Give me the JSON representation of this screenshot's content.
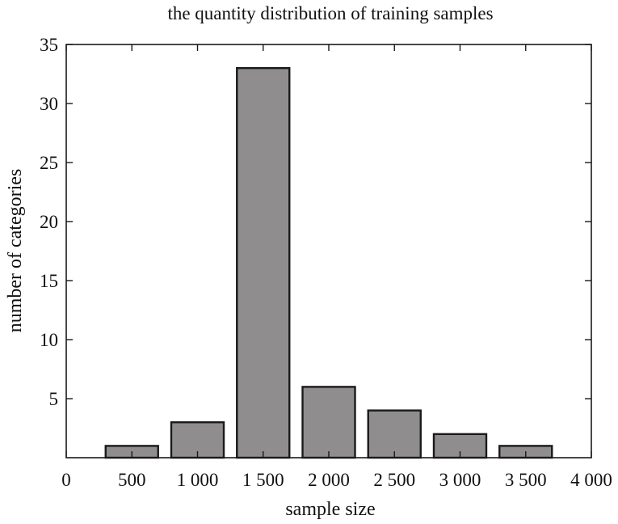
{
  "chart_data": {
    "type": "bar",
    "title": "the quantity distribution of training samples",
    "xlabel": "sample size",
    "ylabel": "number of categories",
    "x": [
      500,
      1000,
      1500,
      2000,
      2500,
      3000,
      3500
    ],
    "values": [
      1,
      3,
      33,
      6,
      4,
      2,
      1
    ],
    "bar_width": 400,
    "xlim": [
      0,
      4000
    ],
    "ylim": [
      0,
      35
    ],
    "xticks": [
      0,
      500,
      1000,
      1500,
      2000,
      2500,
      3000,
      3500,
      4000
    ],
    "xtick_labels": [
      "0",
      "500",
      "1 000",
      "1 500",
      "2 000",
      "2 500",
      "3 000",
      "3 500",
      "4 000"
    ],
    "yticks": [
      5,
      10,
      15,
      20,
      25,
      30,
      35
    ],
    "ytick_labels": [
      "5",
      "10",
      "15",
      "20",
      "25",
      "30",
      "35"
    ],
    "grid": false,
    "legend": "none",
    "colors": {
      "bar_fill": "#8f8d8d",
      "bar_stroke": "#1a1a1a",
      "axis": "#1a1a1a"
    }
  }
}
